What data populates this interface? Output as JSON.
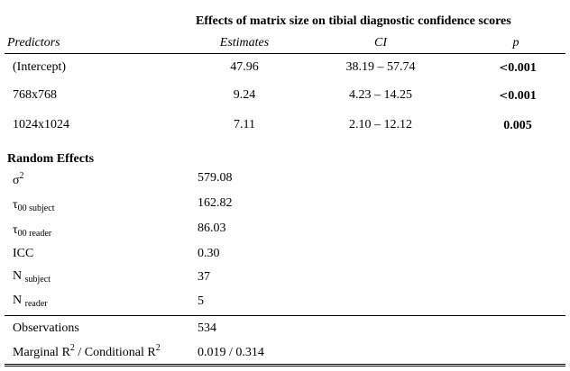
{
  "title": "Effects of matrix size on tibial diagnostic confidence scores",
  "headers": {
    "predictors": "Predictors",
    "estimates": "Estimates",
    "ci": "CI",
    "p": "p"
  },
  "rows": [
    {
      "predictor": "(Intercept)",
      "estimate": "47.96",
      "ci": "38.19 – 57.74",
      "p_prefix": "<",
      "p": "0.001"
    },
    {
      "predictor": "768x768",
      "estimate": "9.24",
      "ci": "4.23 – 14.25",
      "p_prefix": "<",
      "p": "0.001"
    },
    {
      "predictor": "1024x1024",
      "estimate": "7.11",
      "ci": "2.10 – 12.12",
      "p_prefix": "",
      "p": "0.005"
    }
  ],
  "random_effects": {
    "heading": "Random Effects",
    "sigma_symbol": "σ",
    "sigma_sup": "2",
    "sigma_value": "579.08",
    "tau_subject_symbol": "τ",
    "tau_subject_sub": "00 subject",
    "tau_subject_value": "162.82",
    "tau_reader_symbol": "τ",
    "tau_reader_sub": "00 reader",
    "tau_reader_value": "86.03",
    "icc_label": "ICC",
    "icc_value": "0.30",
    "n_subject_symbol": "N",
    "n_subject_sub": "subject",
    "n_subject_value": "37",
    "n_reader_symbol": "N",
    "n_reader_sub": "reader",
    "n_reader_value": "5"
  },
  "footer": {
    "observations_label": "Observations",
    "observations_value": "534",
    "r2_marginal": "Marginal R",
    "r2_sup1": "2",
    "r2_sep": " / Conditional R",
    "r2_sup2": "2",
    "r2_value": "0.019 / 0.314"
  }
}
